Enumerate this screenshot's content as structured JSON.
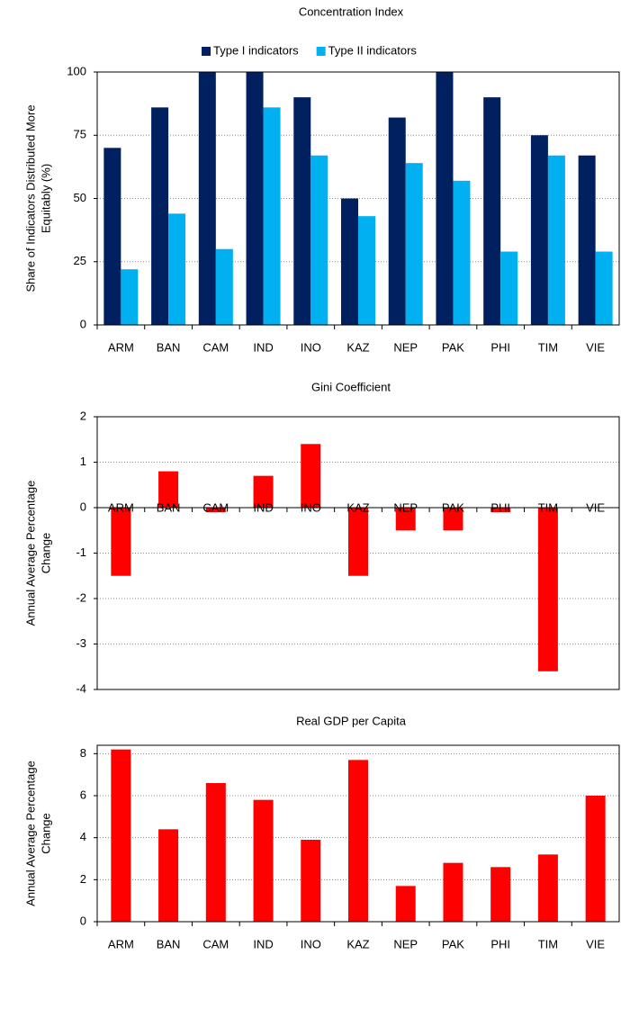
{
  "chart_data": [
    {
      "type": "bar",
      "title": "Concentration Index",
      "ylabel": [
        "Share of Indicators  Distributed More",
        "Equitably (%)"
      ],
      "categories": [
        "ARM",
        "BAN",
        "CAM",
        "IND",
        "INO",
        "KAZ",
        "NEP",
        "PAK",
        "PHI",
        "TIM",
        "VIE"
      ],
      "series": [
        {
          "name": "Type I indicators",
          "color": "#002060",
          "values": [
            70,
            86,
            100,
            100,
            90,
            50,
            82,
            100,
            90,
            75,
            67
          ]
        },
        {
          "name": "Type II indicators",
          "color": "#00b0f0",
          "values": [
            22,
            44,
            30,
            86,
            67,
            43,
            64,
            57,
            29,
            67,
            29
          ]
        }
      ],
      "ylim": [
        0,
        100
      ],
      "yticks": [
        0,
        25,
        50,
        75,
        100
      ],
      "grid": true,
      "legend": "top"
    },
    {
      "type": "bar",
      "title": "Gini Coefficient",
      "ylabel": [
        "Annual Average Percentage",
        "Change"
      ],
      "categories": [
        "ARM",
        "BAN",
        "CAM",
        "IND",
        "INO",
        "KAZ",
        "NEP",
        "PAK",
        "PHI",
        "TIM",
        "VIE"
      ],
      "series": [
        {
          "color": "#ff0000",
          "values": [
            -1.5,
            0.8,
            -0.1,
            0.7,
            1.4,
            -1.5,
            -0.5,
            -0.5,
            -0.1,
            -3.6,
            0
          ]
        }
      ],
      "ylim": [
        -4,
        2
      ],
      "yticks": [
        -4,
        -3,
        -2,
        -1,
        0,
        1,
        2
      ],
      "grid": true
    },
    {
      "type": "bar",
      "title": "Real GDP per Capita",
      "ylabel": [
        "Annual Average Percentage",
        "Change"
      ],
      "categories": [
        "ARM",
        "BAN",
        "CAM",
        "IND",
        "INO",
        "KAZ",
        "NEP",
        "PAK",
        "PHI",
        "TIM",
        "VIE"
      ],
      "series": [
        {
          "color": "#ff0000",
          "values": [
            8.2,
            4.4,
            6.6,
            5.8,
            3.9,
            7.7,
            1.7,
            2.8,
            2.6,
            3.2,
            6.0
          ]
        }
      ],
      "ylim": [
        0,
        8.4
      ],
      "yticks": [
        0,
        2,
        4,
        6,
        8
      ],
      "grid": true
    }
  ]
}
